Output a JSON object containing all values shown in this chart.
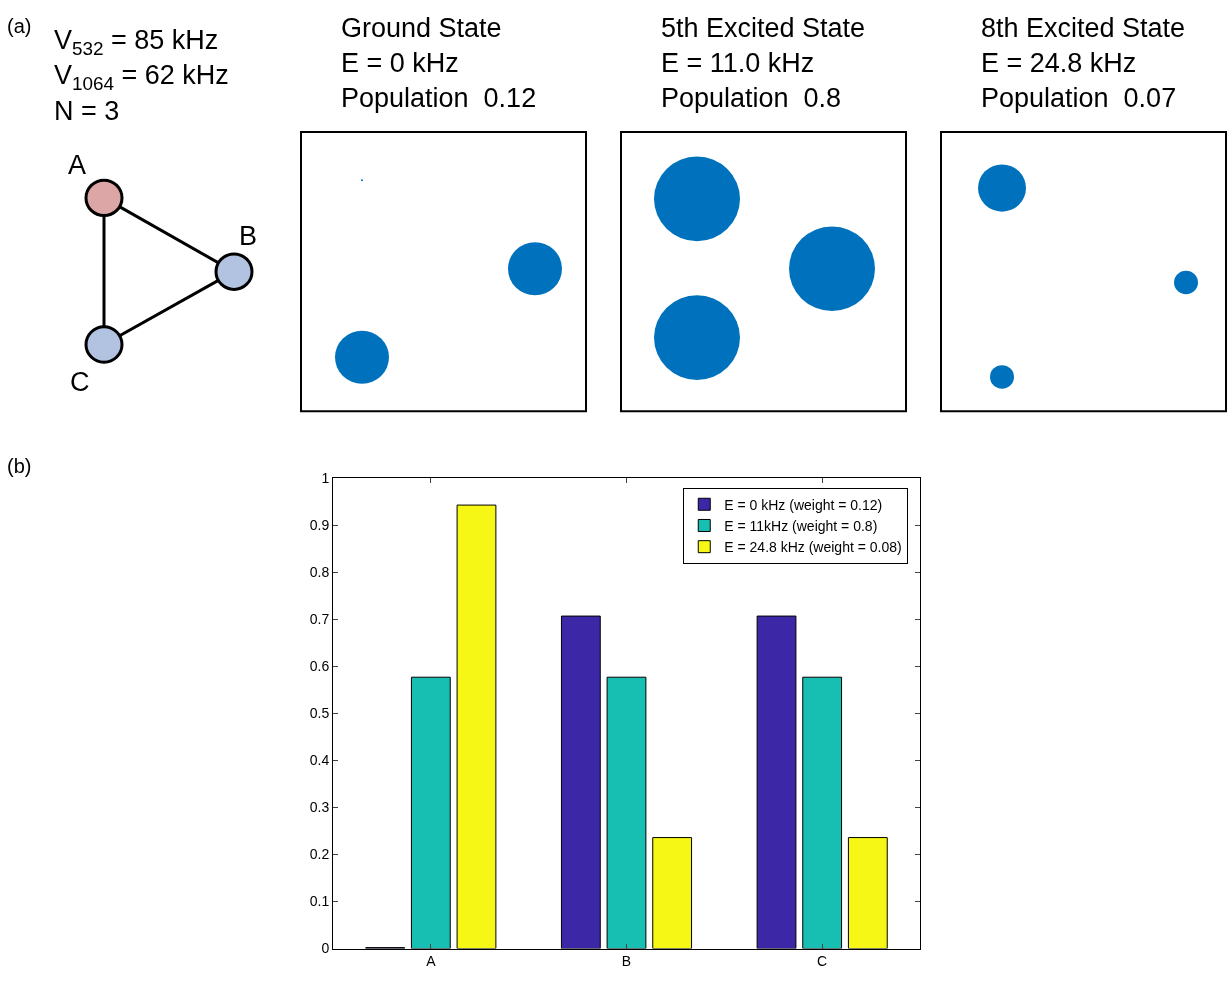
{
  "chart_data": [
    {
      "type": "other",
      "annotations": [
        "(a)",
        "V$_{532}$ = 85 kHz",
        "V$_{1064}$ = 62 kHz",
        "N = 3",
        "A",
        "B",
        "C"
      ]
    },
    {
      "type": "other",
      "annotations": [
        "Ground State\nE = 0 kHz\nPopulation  0.12",
        "5th Excited State\nE = 11.0 kHz\nPopulation  0.8",
        "8th Excited State\nE = 24.8 kHz\nPopulation  0.07"
      ]
    },
    {
      "type": "bar",
      "categories": [
        "A",
        "B",
        "C"
      ],
      "ylim": [
        0,
        1
      ],
      "yticks": [
        0,
        0.1,
        0.2,
        0.3,
        0.4,
        0.5,
        0.6,
        0.7,
        0.8,
        0.9,
        1
      ],
      "legend": "top right",
      "annotations": [
        "(b)"
      ],
      "series": [
        {
          "name": "E = 0 kHz (weight = 0.12)",
          "color": "#3c28a6",
          "values": [
            0.002,
            0.707,
            0.707
          ]
        },
        {
          "name": "E = 11kHz (weight = 0.8)",
          "color": "#17bfb3",
          "values": [
            0.577,
            0.577,
            0.577
          ]
        },
        {
          "name": "E = 24.8 kHz (weight = 0.08)",
          "color": "#f7f716",
          "values": [
            0.943,
            0.236,
            0.236
          ]
        }
      ]
    }
  ]
}
